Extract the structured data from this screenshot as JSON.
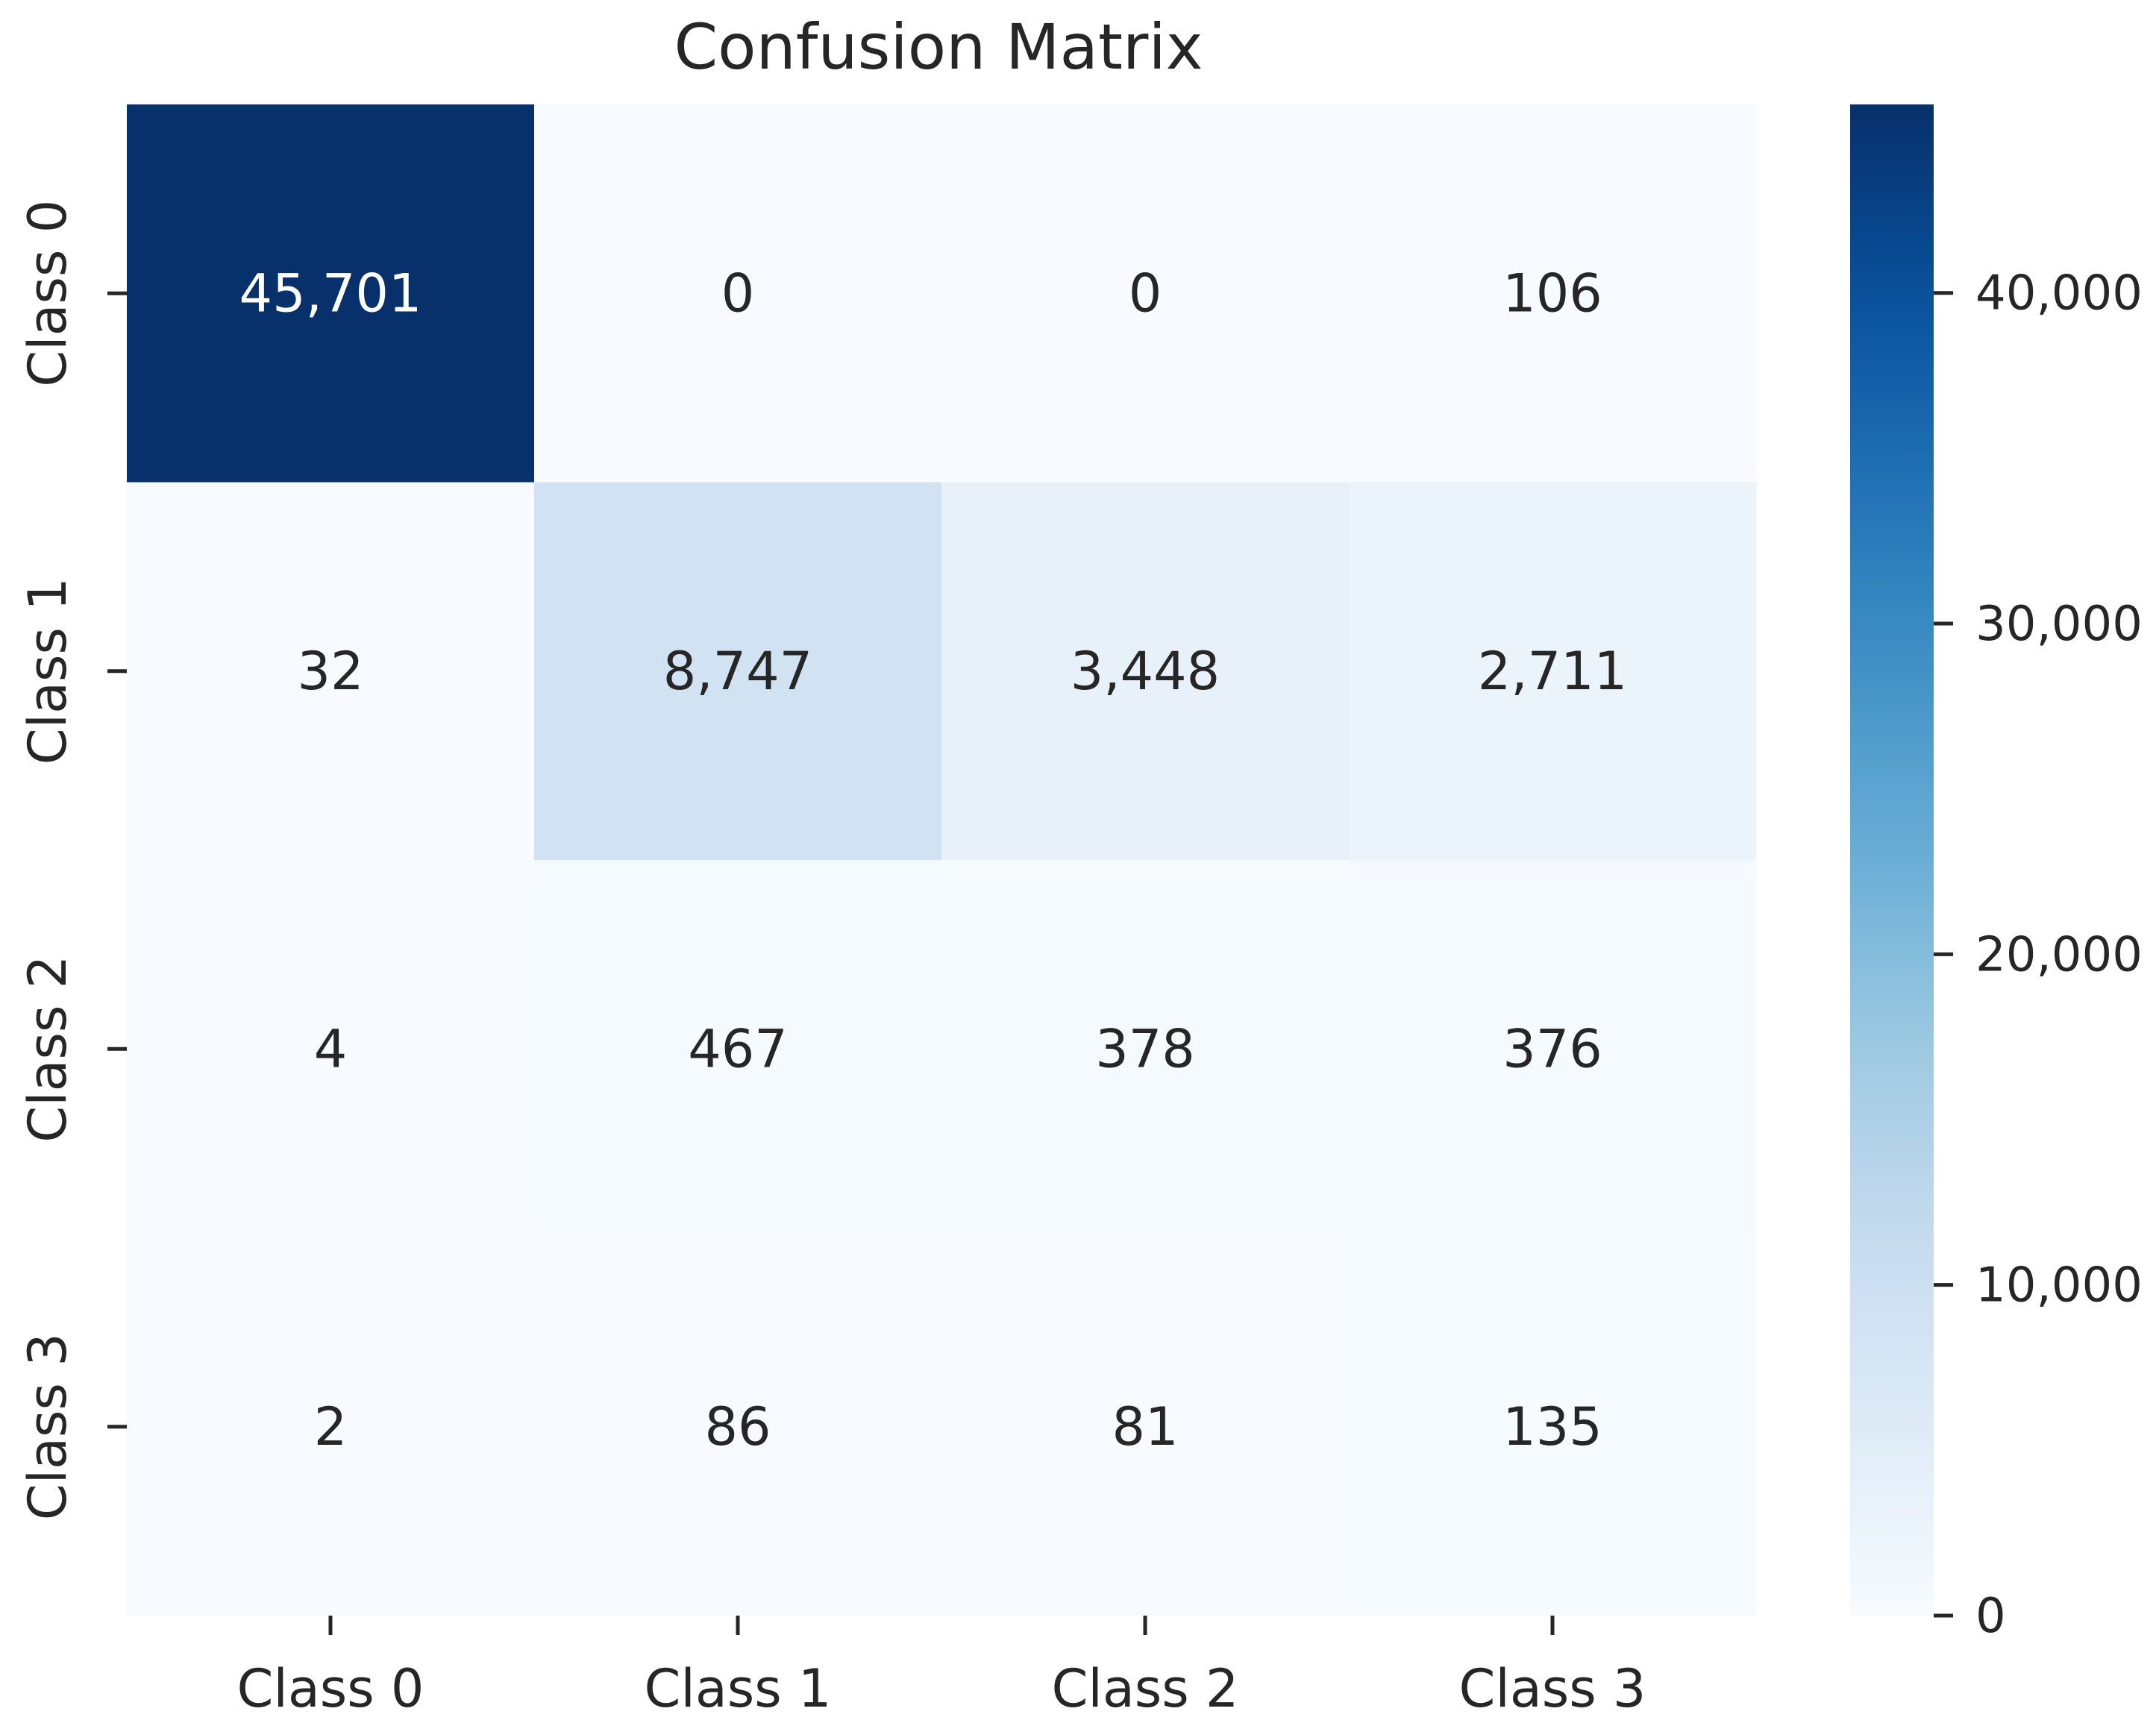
{
  "chart_data": {
    "type": "heatmap",
    "title": "Confusion Matrix",
    "xlabel": "",
    "ylabel": "",
    "x_categories": [
      "Class 0",
      "Class 1",
      "Class 2",
      "Class 3"
    ],
    "y_categories": [
      "Class 0",
      "Class 1",
      "Class 2",
      "Class 3"
    ],
    "values": [
      [
        45701,
        0,
        0,
        106
      ],
      [
        32,
        8747,
        3448,
        2711
      ],
      [
        4,
        467,
        378,
        376
      ],
      [
        2,
        86,
        81,
        135
      ]
    ],
    "value_labels": [
      [
        "45,701",
        "0",
        "0",
        "106"
      ],
      [
        "32",
        "8,747",
        "3,448",
        "2,711"
      ],
      [
        "4",
        "467",
        "378",
        "376"
      ],
      [
        "2",
        "86",
        "81",
        "135"
      ]
    ],
    "colormap": "Blues",
    "colorbar": {
      "range": [
        0,
        45701
      ],
      "ticks": [
        0,
        10000,
        20000,
        30000,
        40000
      ],
      "tick_labels": [
        "0",
        "10,000",
        "20,000",
        "30,000",
        "40,000"
      ]
    },
    "grid": false,
    "legend": "colorbar-right"
  }
}
